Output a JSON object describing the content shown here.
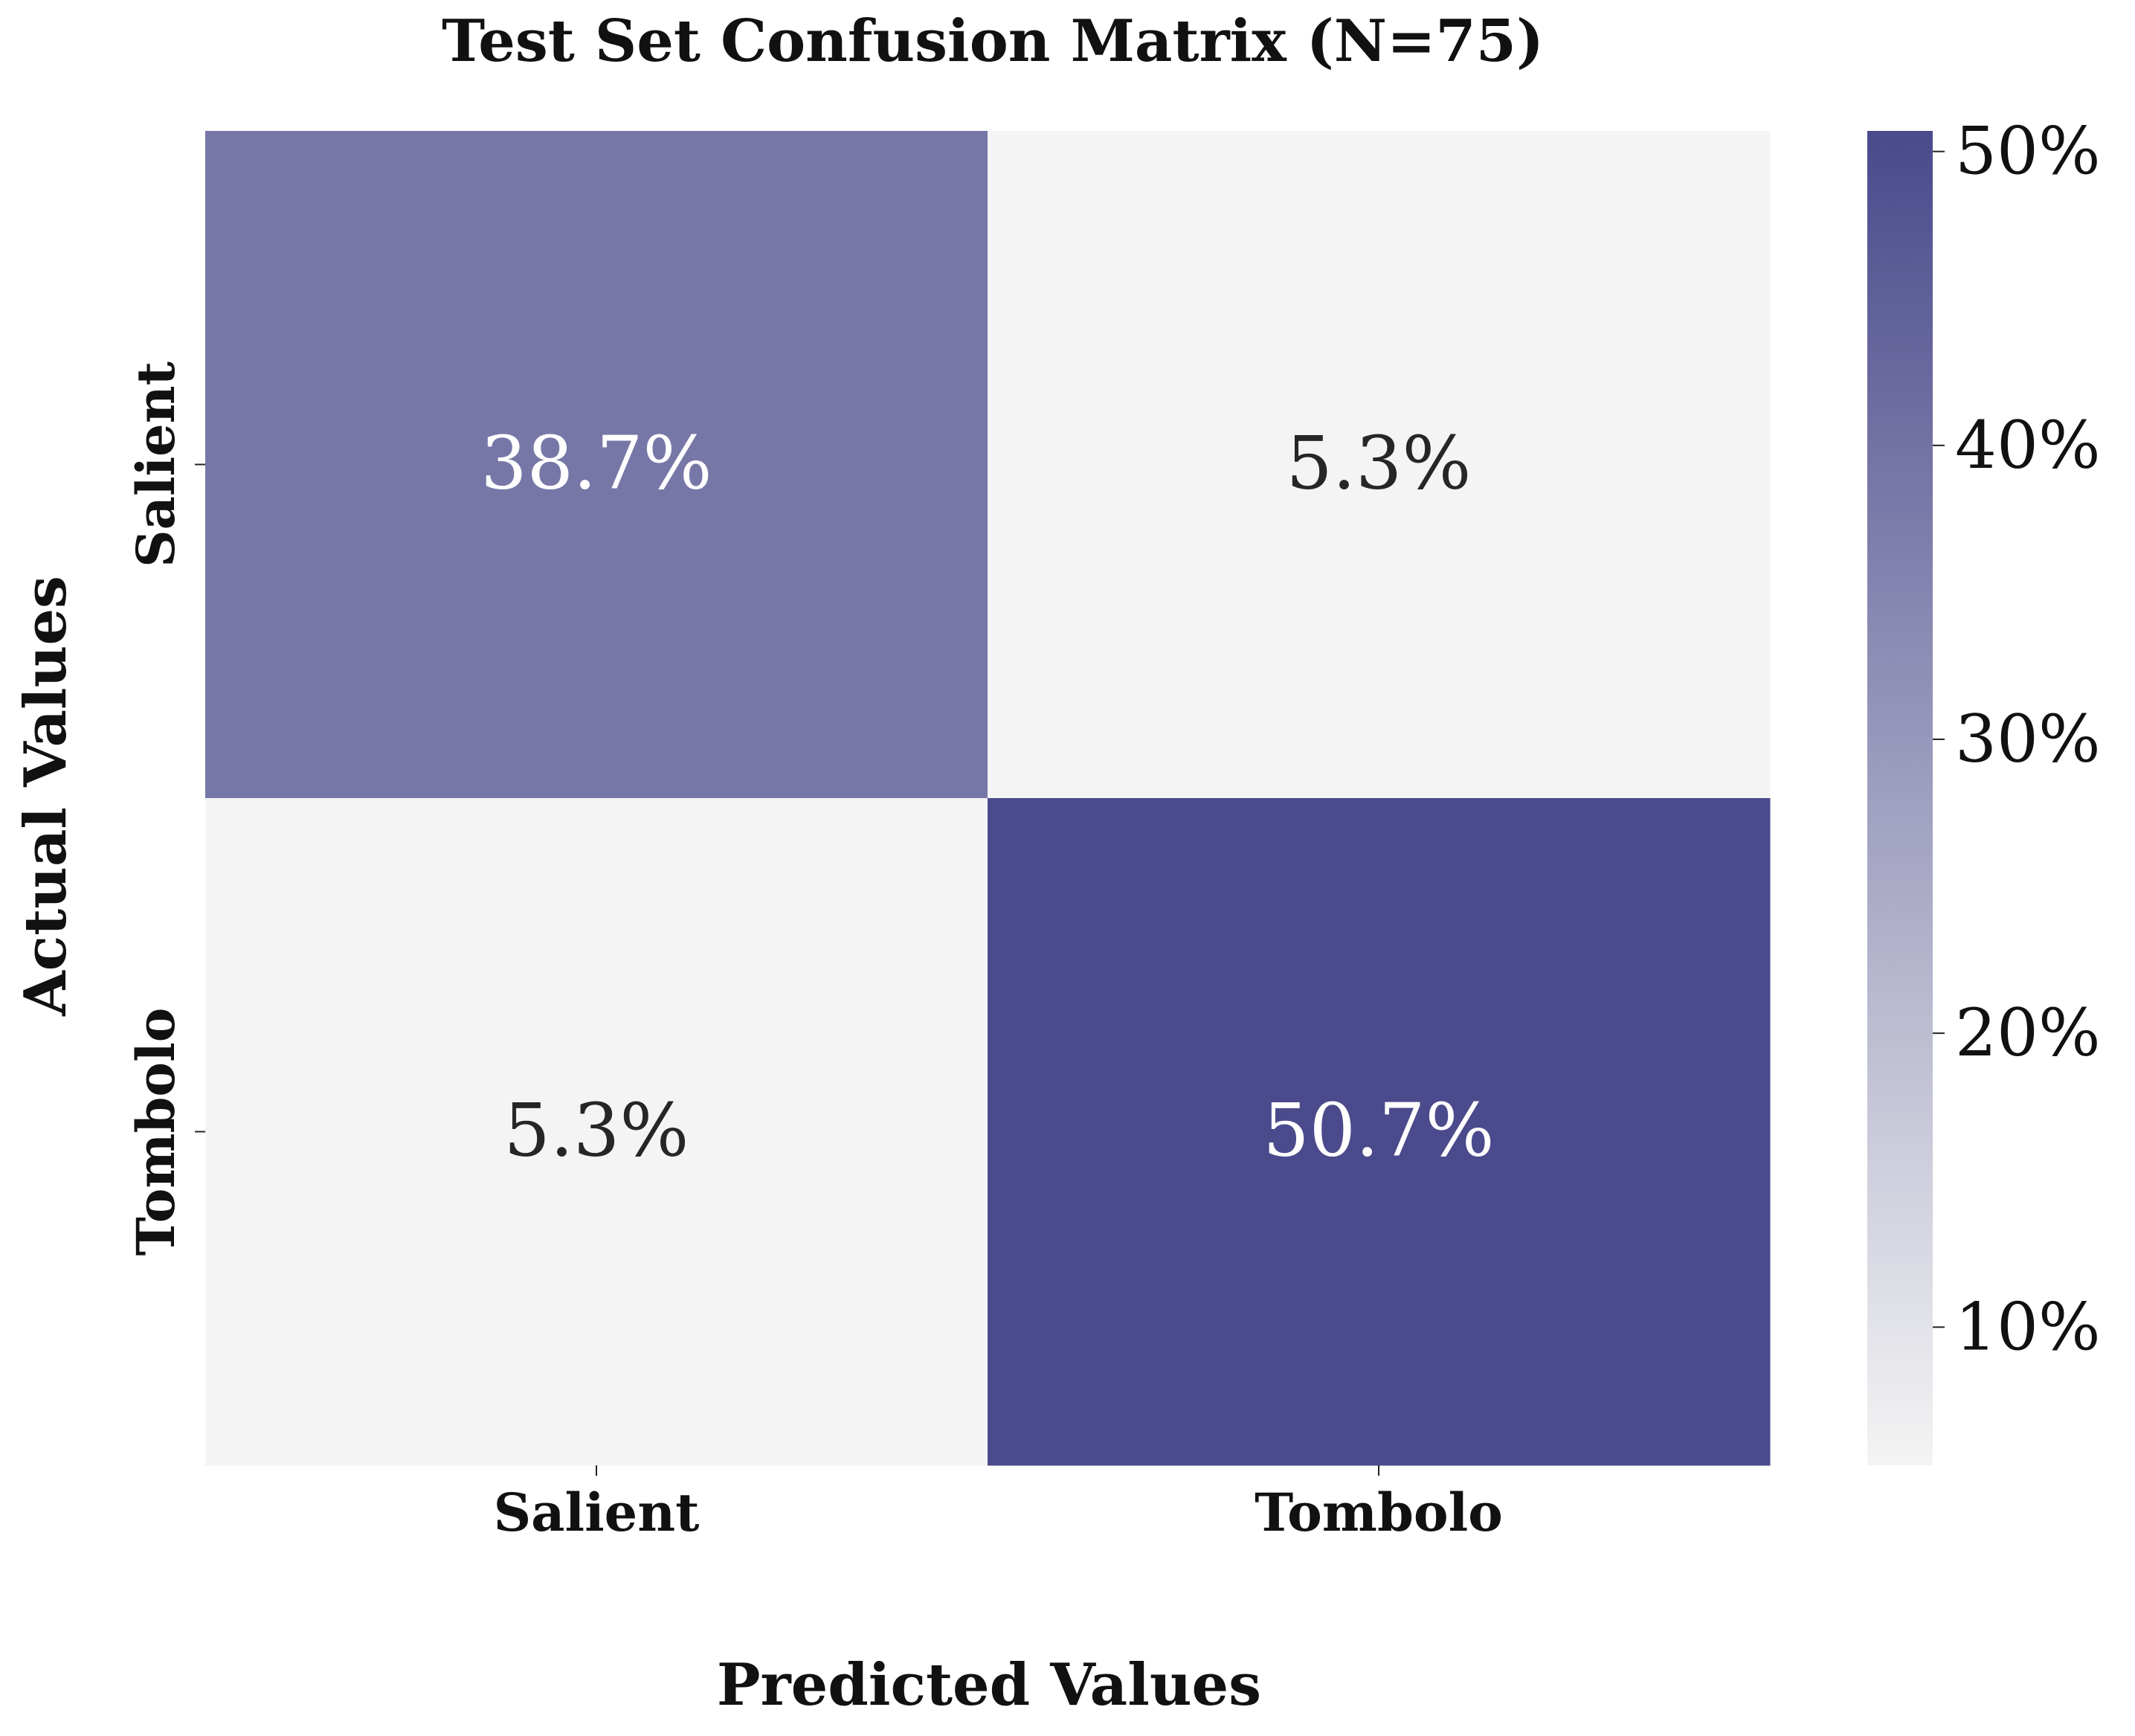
{
  "chart_data": {
    "type": "heatmap",
    "title": "Test Set Confusion Matrix (N=75)",
    "xlabel": "Predicted Values",
    "ylabel": "Actual Values",
    "x_categories": [
      "Salient",
      "Tombolo"
    ],
    "y_categories": [
      "Salient",
      "Tombolo"
    ],
    "values": [
      [
        38.7,
        5.3
      ],
      [
        5.3,
        50.7
      ]
    ],
    "cell_labels": [
      [
        "38.7%",
        "5.3%"
      ],
      [
        "5.3%",
        "50.7%"
      ]
    ],
    "colorbar": {
      "min": 5.3,
      "max": 50.7,
      "ticks": [
        10,
        20,
        30,
        40,
        50
      ],
      "tick_labels": [
        "10%",
        "20%",
        "30%",
        "40%",
        "50%"
      ]
    },
    "colors": {
      "low": "#f4f4f4",
      "high": "#4a4a8c"
    },
    "grid": false
  }
}
